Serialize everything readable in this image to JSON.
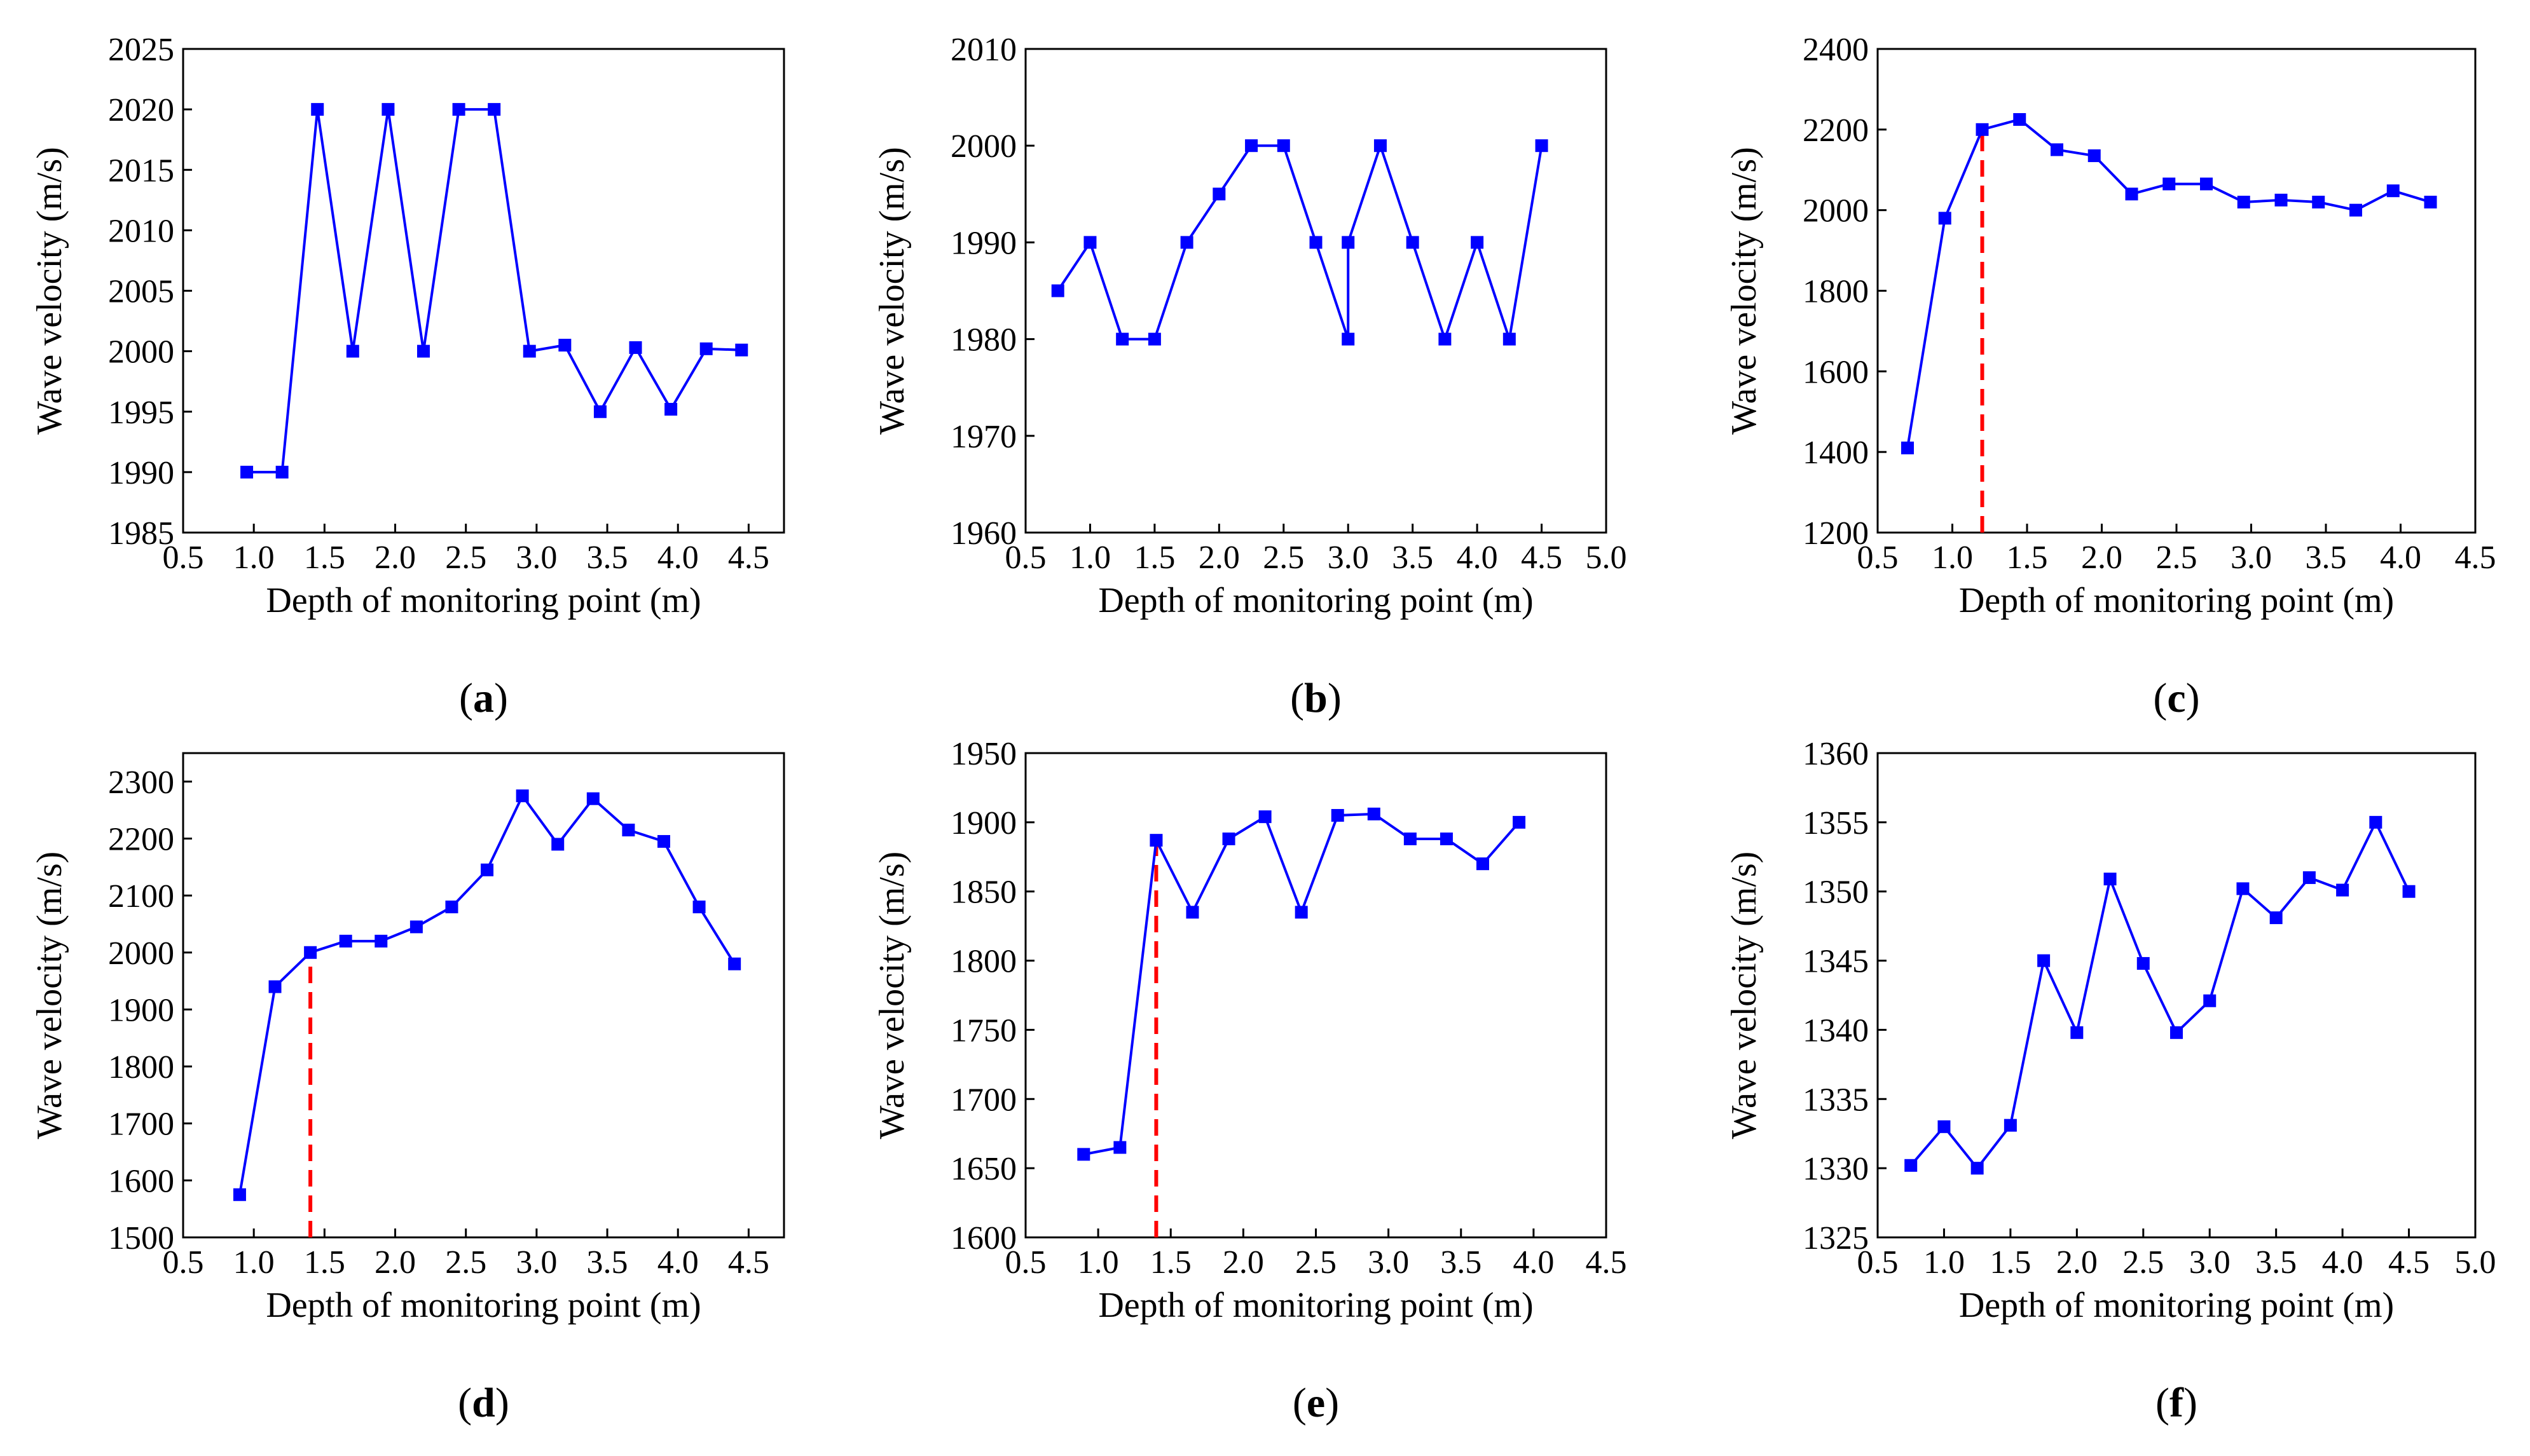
{
  "colors": {
    "series": "#0000ff",
    "marker_line": "#ff0000",
    "axes": "#000000",
    "background": "#ffffff"
  },
  "chart_data": [
    {
      "id": "a",
      "type": "line",
      "panel_label": "a",
      "xlabel": "Depth of monitoring point (m)",
      "ylabel": "Wave velocity (m/s)",
      "xlim": [
        0.5,
        4.75
      ],
      "ylim": [
        1985,
        2025
      ],
      "xticks": [
        0.5,
        1.0,
        1.5,
        2.0,
        2.5,
        3.0,
        3.5,
        4.0,
        4.5
      ],
      "xtick_labels": [
        "0.5",
        "1.0",
        "1.5",
        "2.0",
        "2.5",
        "3.0",
        "3.5",
        "4.0",
        "4.5"
      ],
      "yticks": [
        1985,
        1990,
        1995,
        2000,
        2005,
        2010,
        2015,
        2020,
        2025
      ],
      "ytick_labels": [
        "1985",
        "1990",
        "1995",
        "2000",
        "2005",
        "2010",
        "2015",
        "2020",
        "2025"
      ],
      "x": [
        0.95,
        1.2,
        1.45,
        1.7,
        1.95,
        2.2,
        2.45,
        2.7,
        2.95,
        3.2,
        3.45,
        3.7,
        3.95,
        4.2,
        4.45
      ],
      "y": [
        1990,
        1990,
        2020,
        2000,
        2020,
        2000,
        2020,
        2020,
        2000,
        2000.5,
        1995,
        2000.3,
        1995.2,
        2000.2,
        2000.1
      ],
      "marker_x": null
    },
    {
      "id": "b",
      "type": "line",
      "panel_label": "b",
      "xlabel": "Depth of monitoring point (m)",
      "ylabel": "Wave velocity (m/s)",
      "xlim": [
        0.5,
        5.0
      ],
      "ylim": [
        1960,
        2010
      ],
      "xticks": [
        0.5,
        1.0,
        1.5,
        2.0,
        2.5,
        3.0,
        3.5,
        4.0,
        4.5,
        5.0
      ],
      "xtick_labels": [
        "0.5",
        "1.0",
        "1.5",
        "2.0",
        "2.5",
        "3.0",
        "3.5",
        "4.0",
        "4.5",
        "5.0"
      ],
      "yticks": [
        1960,
        1970,
        1980,
        1990,
        2000,
        2010
      ],
      "ytick_labels": [
        "1960",
        "1970",
        "1980",
        "1990",
        "2000",
        "2010"
      ],
      "x": [
        0.75,
        1.0,
        1.25,
        1.5,
        1.75,
        2.0,
        2.25,
        2.5,
        2.75,
        3.0,
        3.0,
        3.25,
        3.5,
        3.75,
        4.0,
        4.25,
        4.5
      ],
      "y": [
        1985,
        1990,
        1980,
        1980,
        1990,
        1995,
        2000,
        2000,
        1990,
        1980,
        1990,
        2000,
        1990,
        1980,
        1990,
        1980,
        2000
      ],
      "marker_x": null
    },
    {
      "id": "c",
      "type": "line",
      "panel_label": "c",
      "xlabel": "Depth of monitoring point (m)",
      "ylabel": "Wave velocity (m/s)",
      "xlim": [
        0.5,
        4.5
      ],
      "ylim": [
        1200,
        2400
      ],
      "xticks": [
        0.5,
        1.0,
        1.5,
        2.0,
        2.5,
        3.0,
        3.5,
        4.0,
        4.5
      ],
      "xtick_labels": [
        "0.5",
        "1.0",
        "1.5",
        "2.0",
        "2.5",
        "3.0",
        "3.5",
        "4.0",
        "4.5"
      ],
      "yticks": [
        1200,
        1400,
        1600,
        1800,
        2000,
        2200,
        2400
      ],
      "ytick_labels": [
        "1200",
        "1400",
        "1600",
        "1800",
        "2000",
        "2200",
        "2400"
      ],
      "x": [
        0.7,
        0.95,
        1.2,
        1.45,
        1.7,
        1.95,
        2.2,
        2.45,
        2.7,
        2.95,
        3.2,
        3.45,
        3.7,
        3.95,
        4.2
      ],
      "y": [
        1410,
        1980,
        2200,
        2225,
        2150,
        2135,
        2040,
        2065,
        2065,
        2020,
        2025,
        2020,
        2000,
        2048,
        2020
      ],
      "marker_x": 1.2
    },
    {
      "id": "d",
      "type": "line",
      "panel_label": "d",
      "xlabel": "Depth of monitoring point (m)",
      "ylabel": "Wave velocity (m/s)",
      "xlim": [
        0.5,
        4.75
      ],
      "ylim": [
        1500,
        2350
      ],
      "xticks": [
        0.5,
        1.0,
        1.5,
        2.0,
        2.5,
        3.0,
        3.5,
        4.0,
        4.5
      ],
      "xtick_labels": [
        "0.5",
        "1.0",
        "1.5",
        "2.0",
        "2.5",
        "3.0",
        "3.5",
        "4.0",
        "4.5"
      ],
      "yticks": [
        1500,
        1600,
        1700,
        1800,
        1900,
        2000,
        2100,
        2200,
        2300
      ],
      "ytick_labels": [
        "1500",
        "1600",
        "1700",
        "1800",
        "1900",
        "2000",
        "2100",
        "2200",
        "2300"
      ],
      "x": [
        0.9,
        1.15,
        1.4,
        1.65,
        1.9,
        2.15,
        2.4,
        2.65,
        2.9,
        3.15,
        3.4,
        3.65,
        3.9,
        4.15,
        4.4
      ],
      "y": [
        1575,
        1940,
        2000,
        2020,
        2020,
        2045,
        2080,
        2145,
        2275,
        2190,
        2270,
        2215,
        2195,
        2080,
        1980
      ],
      "marker_x": 1.4
    },
    {
      "id": "e",
      "type": "line",
      "panel_label": "e",
      "xlabel": "Depth of monitoring point (m)",
      "ylabel": "Wave velocity (m/s)",
      "xlim": [
        0.5,
        4.5
      ],
      "ylim": [
        1600,
        1950
      ],
      "xticks": [
        0.5,
        1.0,
        1.5,
        2.0,
        2.5,
        3.0,
        3.5,
        4.0,
        4.5
      ],
      "xtick_labels": [
        "0.5",
        "1.0",
        "1.5",
        "2.0",
        "2.5",
        "3.0",
        "3.5",
        "4.0",
        "4.5"
      ],
      "yticks": [
        1600,
        1650,
        1700,
        1750,
        1800,
        1850,
        1900,
        1950
      ],
      "ytick_labels": [
        "1600",
        "1650",
        "1700",
        "1750",
        "1800",
        "1850",
        "1900",
        "1950"
      ],
      "x": [
        0.9,
        1.15,
        1.4,
        1.65,
        1.9,
        2.15,
        2.4,
        2.65,
        2.9,
        3.15,
        3.4,
        3.65,
        3.9
      ],
      "y": [
        1660,
        1665,
        1887,
        1835,
        1888,
        1904,
        1835,
        1905,
        1906,
        1888,
        1888,
        1870,
        1900
      ],
      "marker_x": 1.4
    },
    {
      "id": "f",
      "type": "line",
      "panel_label": "f",
      "xlabel": "Depth of monitoring point (m)",
      "ylabel": "Wave velocity (m/s)",
      "xlim": [
        0.5,
        5.0
      ],
      "ylim": [
        1325,
        1360
      ],
      "xticks": [
        0.5,
        1.0,
        1.5,
        2.0,
        2.5,
        3.0,
        3.5,
        4.0,
        4.5,
        5.0
      ],
      "xtick_labels": [
        "0.5",
        "1.0",
        "1.5",
        "2.0",
        "2.5",
        "3.0",
        "3.5",
        "4.0",
        "4.5",
        "5.0"
      ],
      "yticks": [
        1325,
        1330,
        1335,
        1340,
        1345,
        1350,
        1355,
        1360
      ],
      "ytick_labels": [
        "1325",
        "1330",
        "1335",
        "1340",
        "1345",
        "1350",
        "1355",
        "1360"
      ],
      "x": [
        0.75,
        1.0,
        1.25,
        1.5,
        1.75,
        2.0,
        2.25,
        2.5,
        2.75,
        3.0,
        3.25,
        3.5,
        3.75,
        4.0,
        4.25,
        4.5
      ],
      "y": [
        1330.2,
        1333,
        1330,
        1333.1,
        1345,
        1339.8,
        1350.9,
        1344.8,
        1339.8,
        1342.1,
        1350.2,
        1348.1,
        1351,
        1350.1,
        1355,
        1350
      ],
      "marker_x": null
    }
  ]
}
